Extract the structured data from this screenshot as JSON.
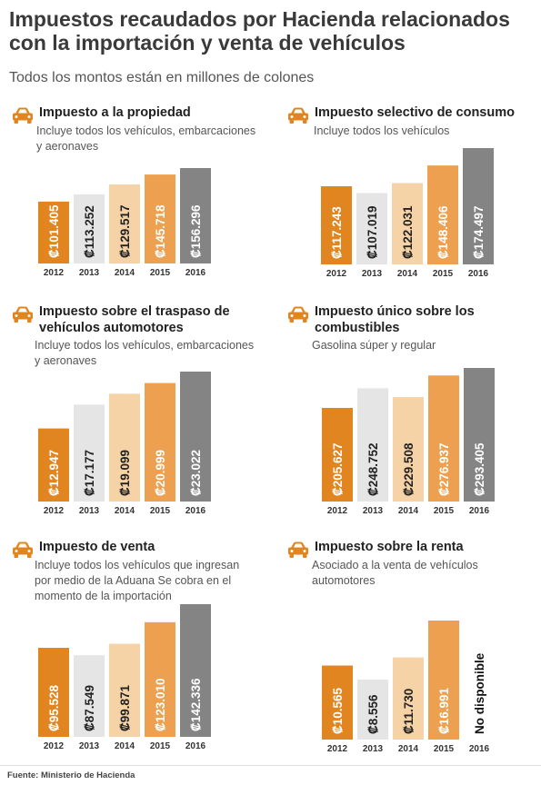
{
  "title": "Impuestos recaudados por Hacienda relacionados con la importación y venta de vehículos",
  "subtitle": "Todos los montos están en millones de colones",
  "source": "Fuente: Ministerio de Hacienda",
  "colors": [
    "#E0851F",
    "#E5E5E5",
    "#F6D3A6",
    "#EDA04F",
    "#848484"
  ],
  "icon": "car-icon",
  "chart_data": [
    {
      "type": "bar",
      "title": "Impuesto a la propiedad",
      "subtitle": "Incluye todos los vehículos, embarcaciones y aeronaves",
      "categories": [
        "2012",
        "2013",
        "2014",
        "2015",
        "2016"
      ],
      "values": [
        101405,
        113252,
        129517,
        145718,
        156296
      ],
      "labels": [
        "₡101.405",
        "₡113.252",
        "₡129.517",
        "₡145.718",
        "₡156.296"
      ],
      "ylim": [
        0,
        156296
      ]
    },
    {
      "type": "bar",
      "title": "Impuesto selectivo de consumo",
      "subtitle": "Incluye todos los vehículos",
      "categories": [
        "2012",
        "2013",
        "2014",
        "2015",
        "2016"
      ],
      "values": [
        117243,
        107019,
        122031,
        148406,
        174497
      ],
      "labels": [
        "₡117.243",
        "₡107.019",
        "₡122.031",
        "₡148.406",
        "₡174.497"
      ],
      "ylim": [
        0,
        174497
      ]
    },
    {
      "type": "bar",
      "title": "Impuesto sobre el traspaso de vehículos automotores",
      "subtitle": "Incluye todos los vehículos, embarcaciones y aeronaves",
      "categories": [
        "2012",
        "2013",
        "2014",
        "2015",
        "2016"
      ],
      "values": [
        12947,
        17177,
        19099,
        20999,
        23022
      ],
      "labels": [
        "₡12.947",
        "₡17.177",
        "₡19.099",
        "₡20.999",
        "₡23.022"
      ],
      "ylim": [
        0,
        23022
      ]
    },
    {
      "type": "bar",
      "title": "Impuesto único sobre los combustibles",
      "subtitle": "Gasolina súper y regular",
      "categories": [
        "2012",
        "2013",
        "2014",
        "2015",
        "2016"
      ],
      "values": [
        205627,
        248752,
        229508,
        276937,
        293405
      ],
      "labels": [
        "₡205.627",
        "₡248.752",
        "₡229.508",
        "₡276.937",
        "₡293.405"
      ],
      "ylim": [
        0,
        293405
      ]
    },
    {
      "type": "bar",
      "title": "Impuesto de venta",
      "subtitle": "Incluye todos los vehículos que ingresan por medio de la Aduana Se cobra en el momento de la importación",
      "categories": [
        "2012",
        "2013",
        "2014",
        "2015",
        "2016"
      ],
      "values": [
        95528,
        87549,
        99871,
        123010,
        142336
      ],
      "labels": [
        "₡95.528",
        "₡87.549",
        "₡99.871",
        "₡123.010",
        "₡142.336"
      ],
      "ylim": [
        0,
        142336
      ]
    },
    {
      "type": "bar",
      "title": "Impuesto sobre la renta",
      "subtitle": "Asociado a la venta de vehículos automotores",
      "categories": [
        "2012",
        "2013",
        "2014",
        "2015",
        "2016"
      ],
      "values": [
        10565,
        8556,
        11730,
        16991,
        null
      ],
      "labels": [
        "₡10.565",
        "₡8.556",
        "₡11.730",
        "₡16.991",
        "No disponible"
      ],
      "ylim": [
        0,
        16991
      ]
    }
  ]
}
